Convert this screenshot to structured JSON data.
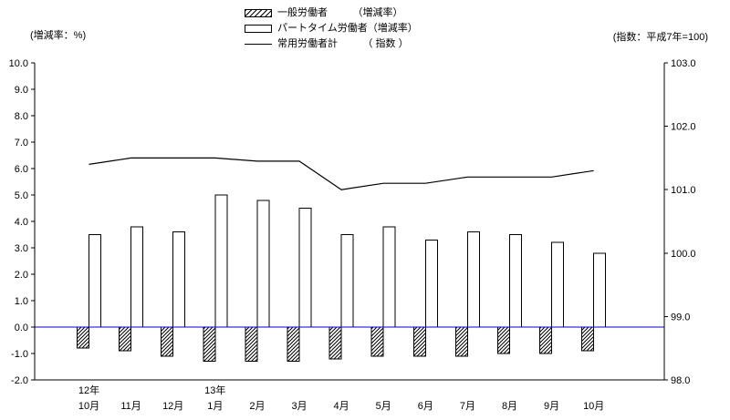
{
  "titles": {
    "left_axis_title": "(増減率：%)",
    "right_axis_title": "(指数：平成7年=100)"
  },
  "legend": {
    "items": [
      {
        "swatch": "hatched-bar",
        "label": "一般労働者　　　（増減率）"
      },
      {
        "swatch": "open-bar",
        "label": "パートタイム労働者（増減率）"
      },
      {
        "swatch": "line",
        "label": "常用労働者計　　　（ 指数 ）"
      }
    ]
  },
  "chart_data": {
    "type": "combo (bar + line, dual axis)",
    "categories": [
      "10月",
      "11月",
      "12月",
      "1月",
      "2月",
      "3月",
      "4月",
      "5月",
      "6月",
      "7月",
      "8月",
      "9月",
      "10月"
    ],
    "year_markers": [
      {
        "index": 0,
        "label": "12年"
      },
      {
        "index": 3,
        "label": "13年"
      }
    ],
    "series": [
      {
        "name": "一般労働者（増減率）",
        "type": "bar",
        "style": "hatched",
        "axis": "left",
        "values": [
          -0.8,
          -0.9,
          -1.1,
          -1.3,
          -1.3,
          -1.3,
          -1.2,
          -1.1,
          -1.1,
          -1.1,
          -1.0,
          -1.0,
          -0.9
        ]
      },
      {
        "name": "パートタイム労働者（増減率）",
        "type": "bar",
        "style": "open",
        "axis": "left",
        "values": [
          3.5,
          3.8,
          3.6,
          5.0,
          4.8,
          4.5,
          3.5,
          3.8,
          3.3,
          3.6,
          3.5,
          3.2,
          2.8
        ]
      },
      {
        "name": "常用労働者計（指数）",
        "type": "line",
        "axis": "right",
        "values": [
          101.4,
          101.5,
          101.5,
          101.5,
          101.45,
          101.45,
          101.0,
          101.1,
          101.1,
          101.2,
          101.2,
          101.2,
          101.3
        ]
      }
    ],
    "left_axis": {
      "label": "(増減率：%)",
      "min": -2.0,
      "max": 10.0,
      "step": 1.0,
      "tick_labels": [
        "10.0",
        "9.0",
        "8.0",
        "7.0",
        "6.0",
        "5.0",
        "4.0",
        "3.0",
        "2.0",
        "1.0",
        "0.0",
        "-1.0",
        "-2.0"
      ]
    },
    "right_axis": {
      "label": "(指数：平成7年=100)",
      "min": 98.0,
      "max": 103.0,
      "step": 1.0,
      "tick_labels": [
        "103.0",
        "102.0",
        "101.0",
        "100.0",
        "99.0",
        "98.0"
      ]
    },
    "colors": {
      "zero_line": "#0000cc",
      "axis": "#000000",
      "bar_outline": "#000000",
      "line_series": "#000000"
    },
    "grid": "off",
    "legend_position": "top-center"
  }
}
